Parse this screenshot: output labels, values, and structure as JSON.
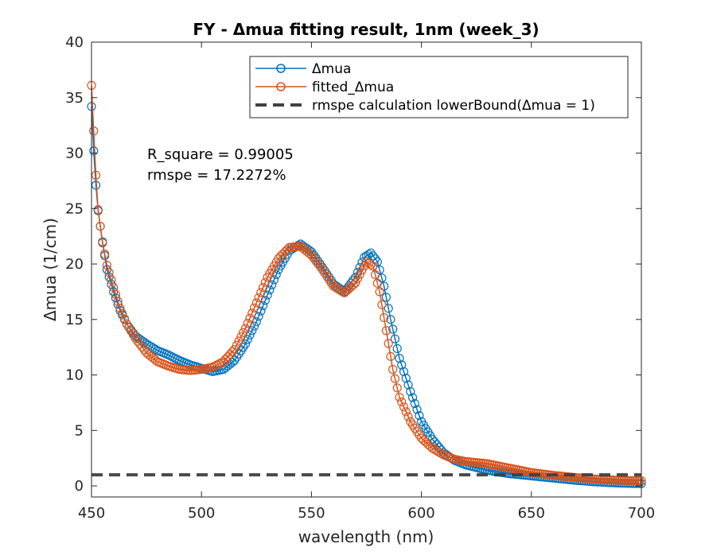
{
  "chart_data": {
    "type": "line",
    "title": "FY - Δmua fitting result, 1nm (week_3)",
    "xlabel": "wavelength (nm)",
    "ylabel": "Δmua (1/cm)",
    "xlim": [
      450,
      700
    ],
    "ylim": [
      -1,
      40
    ],
    "xticks": [
      450,
      500,
      550,
      600,
      650,
      700
    ],
    "yticks": [
      0,
      5,
      10,
      15,
      20,
      25,
      30,
      35,
      40
    ],
    "grid": false,
    "legend_position": "top-right",
    "annotations": [
      "R_square = 0.99005",
      "rmspe = 17.2272%"
    ],
    "series": [
      {
        "name": "Δmua",
        "color": "#0072BD",
        "marker": "circle",
        "anchors": [
          [
            450,
            34.2
          ],
          [
            451,
            30.2
          ],
          [
            452,
            27.1
          ],
          [
            453,
            24.8
          ],
          [
            455,
            22.0
          ],
          [
            457,
            19.5
          ],
          [
            460,
            17.5
          ],
          [
            463,
            15.8
          ],
          [
            466,
            14.6
          ],
          [
            470,
            13.5
          ],
          [
            475,
            12.8
          ],
          [
            480,
            12.2
          ],
          [
            485,
            11.8
          ],
          [
            490,
            11.3
          ],
          [
            495,
            10.9
          ],
          [
            500,
            10.6
          ],
          [
            505,
            10.3
          ],
          [
            510,
            10.5
          ],
          [
            515,
            11.3
          ],
          [
            520,
            12.8
          ],
          [
            525,
            14.8
          ],
          [
            530,
            17.2
          ],
          [
            535,
            19.5
          ],
          [
            540,
            21.2
          ],
          [
            545,
            21.8
          ],
          [
            550,
            21.1
          ],
          [
            555,
            19.7
          ],
          [
            560,
            18.2
          ],
          [
            565,
            17.5
          ],
          [
            570,
            18.8
          ],
          [
            574,
            20.6
          ],
          [
            577,
            21.0
          ],
          [
            580,
            20.2
          ],
          [
            583,
            18.0
          ],
          [
            586,
            15.0
          ],
          [
            590,
            11.5
          ],
          [
            595,
            8.5
          ],
          [
            600,
            5.8
          ],
          [
            605,
            4.2
          ],
          [
            610,
            3.0
          ],
          [
            615,
            2.3
          ],
          [
            620,
            1.9
          ],
          [
            630,
            1.4
          ],
          [
            640,
            1.1
          ],
          [
            650,
            0.9
          ],
          [
            660,
            0.7
          ],
          [
            670,
            0.5
          ],
          [
            680,
            0.35
          ],
          [
            690,
            0.25
          ],
          [
            700,
            0.2
          ]
        ]
      },
      {
        "name": "fitted_Δmua",
        "color": "#D95319",
        "marker": "circle",
        "anchors": [
          [
            450,
            36.1
          ],
          [
            451,
            32.0
          ],
          [
            452,
            28.0
          ],
          [
            453,
            24.9
          ],
          [
            455,
            21.9
          ],
          [
            457,
            19.9
          ],
          [
            460,
            17.9
          ],
          [
            463,
            16.0
          ],
          [
            466,
            14.6
          ],
          [
            470,
            13.3
          ],
          [
            475,
            12.0
          ],
          [
            480,
            11.2
          ],
          [
            485,
            10.8
          ],
          [
            490,
            10.5
          ],
          [
            495,
            10.4
          ],
          [
            500,
            10.5
          ],
          [
            505,
            10.7
          ],
          [
            510,
            11.2
          ],
          [
            515,
            12.3
          ],
          [
            520,
            14.2
          ],
          [
            525,
            16.5
          ],
          [
            530,
            18.8
          ],
          [
            535,
            20.5
          ],
          [
            540,
            21.5
          ],
          [
            545,
            21.6
          ],
          [
            550,
            20.8
          ],
          [
            555,
            19.5
          ],
          [
            560,
            18.0
          ],
          [
            565,
            17.4
          ],
          [
            570,
            18.3
          ],
          [
            575,
            20.2
          ],
          [
            578,
            19.8
          ],
          [
            581,
            17.5
          ],
          [
            584,
            14.0
          ],
          [
            587,
            10.5
          ],
          [
            590,
            8.0
          ],
          [
            595,
            5.8
          ],
          [
            600,
            4.3
          ],
          [
            605,
            3.4
          ],
          [
            610,
            2.8
          ],
          [
            615,
            2.4
          ],
          [
            620,
            2.2
          ],
          [
            630,
            2.0
          ],
          [
            640,
            1.6
          ],
          [
            650,
            1.2
          ],
          [
            660,
            0.95
          ],
          [
            670,
            0.75
          ],
          [
            680,
            0.6
          ],
          [
            690,
            0.5
          ],
          [
            700,
            0.45
          ]
        ]
      },
      {
        "name": "rmspe calculation lowerBound(Δmua = 1)",
        "color": "#404040",
        "style": "dashed",
        "anchors": [
          [
            450,
            1
          ],
          [
            700,
            1
          ]
        ]
      }
    ]
  }
}
